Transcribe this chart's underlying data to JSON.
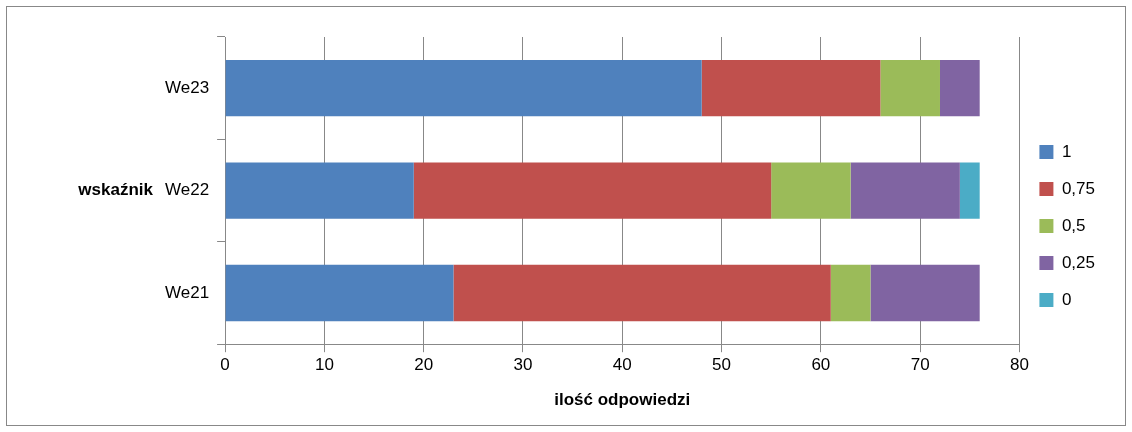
{
  "chart_data": {
    "type": "bar",
    "orientation": "horizontal",
    "stacked": true,
    "xlabel": "ilość odpowiedzi",
    "ylabel": "wskaźnik",
    "categories": [
      "We23",
      "We22",
      "We21"
    ],
    "series": [
      {
        "name": "1",
        "color": "#4f81bd",
        "values": [
          48,
          19,
          23
        ]
      },
      {
        "name": "0,75",
        "color": "#c0504d",
        "values": [
          18,
          36,
          38
        ]
      },
      {
        "name": "0,5",
        "color": "#9bbb59",
        "values": [
          6,
          8,
          4
        ]
      },
      {
        "name": "0,25",
        "color": "#8064a2",
        "values": [
          4,
          11,
          11
        ]
      },
      {
        "name": "0",
        "color": "#4bacc6",
        "values": [
          0,
          2,
          0
        ]
      }
    ],
    "xlim": [
      0,
      80
    ],
    "xticks": [
      0,
      10,
      20,
      30,
      40,
      50,
      60,
      70,
      80
    ],
    "grid": "x",
    "legend": "right"
  }
}
